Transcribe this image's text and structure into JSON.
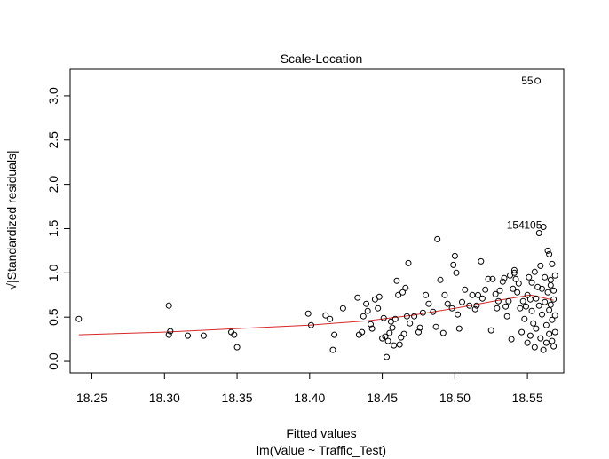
{
  "chart_data": {
    "type": "scatter",
    "title": "Scale-Location",
    "xlabel": "Fitted values",
    "subtitle": "lm(Value ~ Traffic_Test)",
    "ylabel": "√|Standardized residuals|",
    "xlim": [
      18.235,
      18.575
    ],
    "ylim": [
      -0.13,
      3.3
    ],
    "x_ticks": [
      "18.25",
      "18.30",
      "18.35",
      "18.40",
      "18.45",
      "18.50",
      "18.55"
    ],
    "x_tick_values": [
      18.25,
      18.3,
      18.35,
      18.4,
      18.45,
      18.5,
      18.55
    ],
    "y_ticks": [
      "0.0",
      "0.5",
      "1.0",
      "1.5",
      "2.0",
      "2.5",
      "3.0"
    ],
    "y_tick_values": [
      0.0,
      0.5,
      1.0,
      1.5,
      2.0,
      2.5,
      3.0
    ],
    "grid": false,
    "point_color": "#000000",
    "smooth_color": "#d62728",
    "annotations": [
      {
        "text": "55",
        "x": 18.557,
        "y": 3.17
      },
      {
        "text": "154",
        "x": 18.551,
        "y": 1.54
      },
      {
        "text": "105",
        "x": 18.563,
        "y": 1.54
      }
    ],
    "smooth": [
      [
        18.241,
        0.3
      ],
      [
        18.3,
        0.33
      ],
      [
        18.35,
        0.37
      ],
      [
        18.4,
        0.41
      ],
      [
        18.44,
        0.46
      ],
      [
        18.47,
        0.52
      ],
      [
        18.5,
        0.6
      ],
      [
        18.53,
        0.69
      ],
      [
        18.545,
        0.73
      ],
      [
        18.552,
        0.75
      ],
      [
        18.558,
        0.73
      ],
      [
        18.568,
        0.69
      ]
    ],
    "points": [
      [
        18.241,
        0.48
      ],
      [
        18.303,
        0.63
      ],
      [
        18.303,
        0.3
      ],
      [
        18.304,
        0.34
      ],
      [
        18.316,
        0.29
      ],
      [
        18.327,
        0.29
      ],
      [
        18.346,
        0.33
      ],
      [
        18.348,
        0.3
      ],
      [
        18.35,
        0.16
      ],
      [
        18.399,
        0.54
      ],
      [
        18.401,
        0.41
      ],
      [
        18.411,
        0.52
      ],
      [
        18.414,
        0.48
      ],
      [
        18.416,
        0.13
      ],
      [
        18.417,
        0.3
      ],
      [
        18.423,
        0.6
      ],
      [
        18.433,
        0.72
      ],
      [
        18.434,
        0.3
      ],
      [
        18.436,
        0.33
      ],
      [
        18.437,
        0.51
      ],
      [
        18.439,
        0.65
      ],
      [
        18.44,
        0.57
      ],
      [
        18.442,
        0.42
      ],
      [
        18.443,
        0.37
      ],
      [
        18.445,
        0.7
      ],
      [
        18.447,
        0.6
      ],
      [
        18.448,
        0.73
      ],
      [
        18.45,
        0.26
      ],
      [
        18.451,
        0.49
      ],
      [
        18.452,
        0.28
      ],
      [
        18.453,
        0.05
      ],
      [
        18.454,
        0.23
      ],
      [
        18.455,
        0.32
      ],
      [
        18.456,
        0.45
      ],
      [
        18.457,
        0.38
      ],
      [
        18.458,
        0.18
      ],
      [
        18.459,
        0.48
      ],
      [
        18.46,
        0.91
      ],
      [
        18.461,
        0.75
      ],
      [
        18.462,
        0.19
      ],
      [
        18.463,
        0.27
      ],
      [
        18.464,
        0.78
      ],
      [
        18.465,
        0.31
      ],
      [
        18.466,
        0.83
      ],
      [
        18.467,
        0.51
      ],
      [
        18.468,
        1.11
      ],
      [
        18.469,
        0.43
      ],
      [
        18.472,
        0.51
      ],
      [
        18.475,
        0.33
      ],
      [
        18.476,
        0.38
      ],
      [
        18.478,
        0.55
      ],
      [
        18.48,
        0.75
      ],
      [
        18.482,
        0.65
      ],
      [
        18.485,
        0.56
      ],
      [
        18.487,
        0.39
      ],
      [
        18.488,
        1.38
      ],
      [
        18.49,
        0.92
      ],
      [
        18.492,
        0.32
      ],
      [
        18.493,
        0.75
      ],
      [
        18.495,
        0.65
      ],
      [
        18.498,
        0.6
      ],
      [
        18.499,
        1.09
      ],
      [
        18.5,
        1.19
      ],
      [
        18.501,
        1.0
      ],
      [
        18.502,
        0.53
      ],
      [
        18.503,
        0.37
      ],
      [
        18.505,
        0.67
      ],
      [
        18.507,
        0.81
      ],
      [
        18.51,
        0.63
      ],
      [
        18.512,
        0.75
      ],
      [
        18.514,
        0.59
      ],
      [
        18.515,
        0.63
      ],
      [
        18.516,
        0.75
      ],
      [
        18.518,
        1.13
      ],
      [
        18.519,
        0.71
      ],
      [
        18.521,
        0.81
      ],
      [
        18.523,
        0.93
      ],
      [
        18.525,
        0.35
      ],
      [
        18.526,
        0.93
      ],
      [
        18.528,
        0.76
      ],
      [
        18.529,
        0.6
      ],
      [
        18.53,
        0.68
      ],
      [
        18.531,
        0.8
      ],
      [
        18.533,
        0.9
      ],
      [
        18.534,
        0.94
      ],
      [
        18.535,
        0.62
      ],
      [
        18.536,
        0.51
      ],
      [
        18.537,
        0.68
      ],
      [
        18.538,
        0.97
      ],
      [
        18.539,
        0.25
      ],
      [
        18.54,
        0.82
      ],
      [
        18.541,
        1.03
      ],
      [
        18.541,
        1.0
      ],
      [
        18.542,
        0.93
      ],
      [
        18.543,
        0.78
      ],
      [
        18.544,
        0.88
      ],
      [
        18.545,
        0.6
      ],
      [
        18.546,
        0.33
      ],
      [
        18.547,
        0.68
      ],
      [
        18.548,
        0.48
      ],
      [
        18.549,
        0.62
      ],
      [
        18.55,
        0.21
      ],
      [
        18.55,
        0.75
      ],
      [
        18.551,
        0.95
      ],
      [
        18.552,
        0.29
      ],
      [
        18.552,
        0.7
      ],
      [
        18.553,
        0.57
      ],
      [
        18.553,
        0.89
      ],
      [
        18.554,
        0.43
      ],
      [
        18.555,
        0.16
      ],
      [
        18.555,
        1.01
      ],
      [
        18.556,
        0.71
      ],
      [
        18.556,
        0.37
      ],
      [
        18.557,
        3.17
      ],
      [
        18.557,
        0.84
      ],
      [
        18.558,
        1.45
      ],
      [
        18.558,
        0.63
      ],
      [
        18.559,
        1.08
      ],
      [
        18.559,
        0.26
      ],
      [
        18.56,
        0.53
      ],
      [
        18.56,
        0.82
      ],
      [
        18.561,
        0.13
      ],
      [
        18.561,
        1.52
      ],
      [
        18.562,
        0.67
      ],
      [
        18.562,
        0.95
      ],
      [
        18.563,
        0.41
      ],
      [
        18.563,
        0.21
      ],
      [
        18.564,
        1.25
      ],
      [
        18.564,
        0.78
      ],
      [
        18.565,
        1.21
      ],
      [
        18.565,
        0.58
      ],
      [
        18.565,
        0.31
      ],
      [
        18.566,
        0.92
      ],
      [
        18.566,
        0.64
      ],
      [
        18.566,
        0.86
      ],
      [
        18.567,
        0.47
      ],
      [
        18.567,
        0.23
      ],
      [
        18.567,
        1.1
      ],
      [
        18.568,
        0.7
      ],
      [
        18.568,
        0.8
      ],
      [
        18.568,
        0.17
      ],
      [
        18.569,
        0.97
      ],
      [
        18.569,
        0.52
      ],
      [
        18.569,
        0.33
      ]
    ]
  }
}
